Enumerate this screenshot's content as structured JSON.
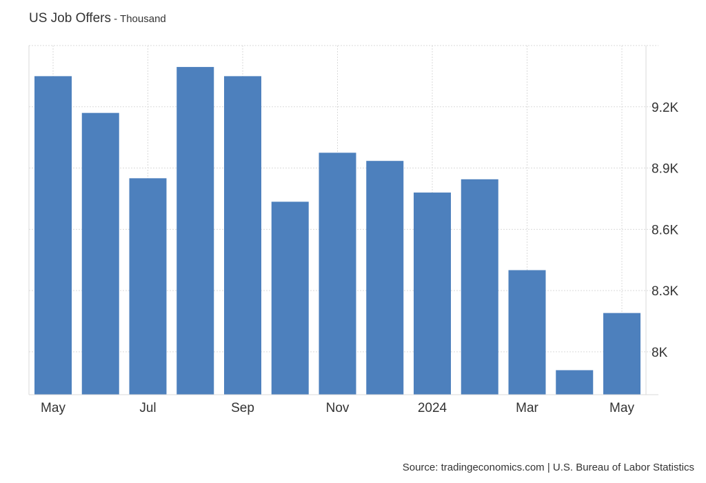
{
  "header": {
    "title": "US Job Offers",
    "separator": " - ",
    "unit": "Thousand"
  },
  "source": "Source: tradingeconomics.com | U.S. Bureau of Labor Statistics",
  "colors": {
    "bar": "#4d80bd",
    "grid": "#d9d9d9",
    "text": "#333333"
  },
  "chart_data": {
    "type": "bar",
    "title": "US Job Offers - Thousand",
    "categories": [
      "2023-05",
      "2023-06",
      "2023-07",
      "2023-08",
      "2023-09",
      "2023-10",
      "2023-11",
      "2023-12",
      "2024-01",
      "2024-02",
      "2024-03",
      "2024-04",
      "2024-05"
    ],
    "values": [
      9350,
      9170,
      8850,
      9395,
      9350,
      8735,
      8975,
      8935,
      8780,
      8845,
      8400,
      7910,
      8190
    ],
    "x_tick_labels": [
      "May",
      "Jul",
      "Sep",
      "Nov",
      "2024",
      "Mar",
      "May"
    ],
    "x_tick_indices": [
      0,
      2,
      4,
      6,
      8,
      10,
      12
    ],
    "y_ticks": [
      8000,
      8300,
      8600,
      8900,
      9200
    ],
    "y_tick_labels": [
      "8K",
      "8.3K",
      "8.6K",
      "8.9K",
      "9.2K"
    ],
    "ylim": [
      7790,
      9500
    ],
    "y_axis_position": "right",
    "grid": true,
    "legend": "none"
  }
}
